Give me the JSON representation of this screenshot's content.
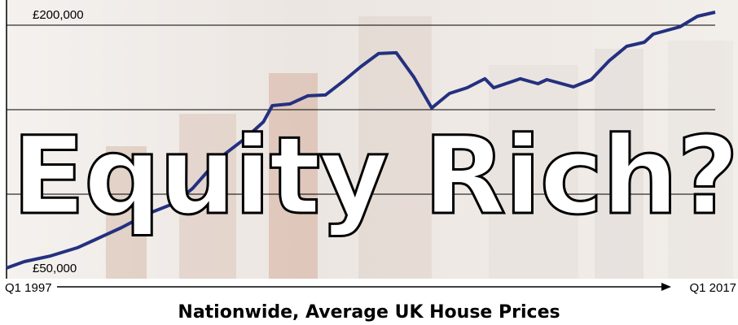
{
  "chart_data": {
    "type": "line",
    "title": "Nationwide, Average UK House Prices",
    "annotation": "Equity Rich?",
    "color": "#24307f",
    "x": [
      1997.0,
      1997.5,
      1998.25,
      1999.0,
      1999.5,
      2000.25,
      2001.0,
      2001.75,
      2002.25,
      2003.0,
      2003.75,
      2004.25,
      2004.5,
      2005.0,
      2005.5,
      2006.0,
      2006.5,
      2007.0,
      2007.5,
      2008.0,
      2008.5,
      2009.0,
      2009.5,
      2010.0,
      2010.5,
      2010.75,
      2011.5,
      2012.0,
      2012.25,
      2013.0,
      2013.5,
      2014.0,
      2014.5,
      2015.0,
      2015.25,
      2016.0,
      2016.5,
      2017.0
    ],
    "values": [
      56300,
      60100,
      63500,
      68300,
      73100,
      80300,
      88500,
      94700,
      103400,
      121200,
      133200,
      142800,
      152400,
      153400,
      158200,
      158700,
      166800,
      175500,
      183200,
      183700,
      169200,
      151000,
      159600,
      163000,
      168300,
      163000,
      168300,
      165400,
      167800,
      163500,
      167800,
      178800,
      187500,
      189900,
      194700,
      199000,
      205300,
      207700
    ],
    "xlim": [
      1997,
      2017
    ],
    "xticks": [
      {
        "value": 1997,
        "label": "Q1 1997"
      },
      {
        "value": 2017,
        "label": "Q1 2017"
      }
    ],
    "ylim": [
      50000,
      215000
    ],
    "yticks": [
      {
        "value": 50000,
        "label": "£50,000"
      },
      {
        "value": 200000,
        "label": "£200,000"
      }
    ],
    "gridlines": [
      100000,
      150000,
      200000
    ]
  }
}
